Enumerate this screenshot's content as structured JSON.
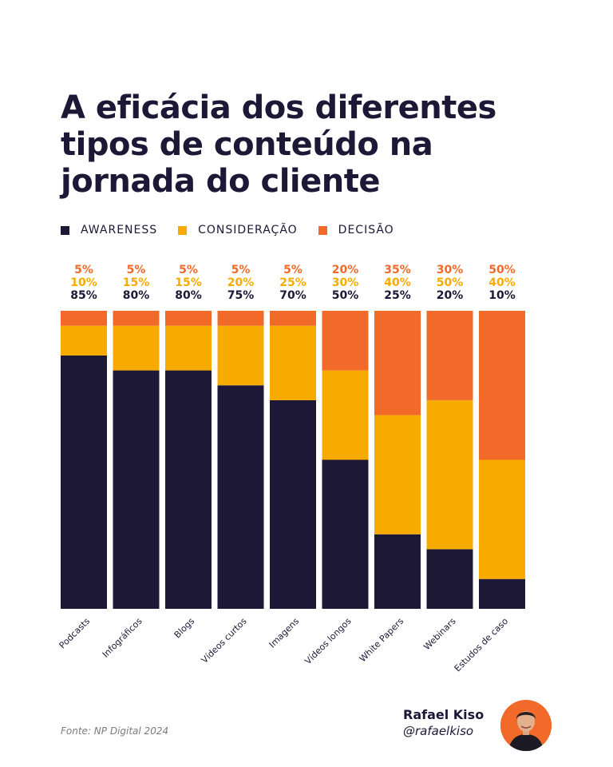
{
  "title_lines": [
    "A eficácia dos diferentes",
    "tipos de conteúdo na",
    "jornada do cliente"
  ],
  "legend": [
    {
      "label": "AWARENESS",
      "color": "#1c1836"
    },
    {
      "label": "CONSIDERAÇÃO",
      "color": "#f7ab00"
    },
    {
      "label": "DECISÃO",
      "color": "#f26a2a"
    }
  ],
  "chart_data": {
    "type": "bar",
    "stacked": true,
    "categories": [
      "Podcasts",
      "Infográficos",
      "Blogs",
      "Vídeos curtos",
      "Imagens",
      "Vídeos longos",
      "White Papers",
      "Webinars",
      "Estudos de caso"
    ],
    "series": [
      {
        "name": "AWARENESS",
        "color": "#1c1836",
        "values": [
          85,
          80,
          80,
          75,
          70,
          50,
          25,
          20,
          10
        ]
      },
      {
        "name": "CONSIDERAÇÃO",
        "color": "#f7ab00",
        "values": [
          10,
          15,
          15,
          20,
          25,
          30,
          40,
          50,
          40
        ]
      },
      {
        "name": "DECISÃO",
        "color": "#f26a2a",
        "values": [
          5,
          5,
          5,
          5,
          5,
          20,
          35,
          30,
          50
        ]
      }
    ],
    "value_labels": {
      "AWARENESS": [
        "85%",
        "80%",
        "80%",
        "75%",
        "70%",
        "50%",
        "25%",
        "20%",
        "10%"
      ],
      "CONSIDERAÇÃO": [
        "10%",
        "15%",
        "15%",
        "20%",
        "25%",
        "30%",
        "40%",
        "50%",
        "40%"
      ],
      "DECISÃO": [
        "5%",
        "5%",
        "5%",
        "5%",
        "5%",
        "20%",
        "35%",
        "30%",
        "50%"
      ]
    },
    "ylim": [
      0,
      100
    ]
  },
  "footer": {
    "source": "Fonte: NP Digital 2024",
    "author_name": "Rafael Kiso",
    "author_handle": "@rafaelkiso"
  },
  "icons": {
    "avatar": "author-avatar"
  }
}
